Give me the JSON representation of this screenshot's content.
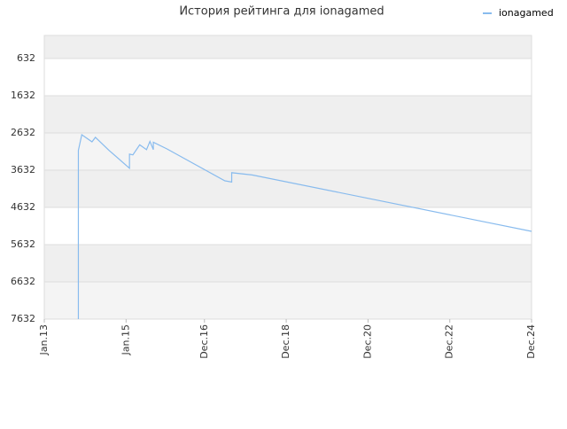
{
  "chart_data": {
    "type": "line",
    "title": "История рейтинга для ionagamed",
    "x": [
      "2013-11",
      "2013-11",
      "2013-12",
      "2014-03",
      "2014-04",
      "2014-08",
      "2015-02",
      "2015-02",
      "2015-03",
      "2015-05",
      "2015-07",
      "2015-08",
      "2015-09",
      "2015-09",
      "2016-01",
      "2017-06",
      "2017-08",
      "2017-08",
      "2018-02",
      "2024-12"
    ],
    "series": [
      {
        "name": "ionagamed",
        "color": "#88bbee",
        "values": [
          7632,
          3100,
          2680,
          2870,
          2750,
          3100,
          3580,
          3200,
          3220,
          2950,
          3080,
          2860,
          3080,
          2880,
          3060,
          3918,
          3950,
          3700,
          3760,
          5275
        ]
      }
    ],
    "xlim": [
      "2013-01",
      "2024-12"
    ],
    "xticks": [
      {
        "value": "2013-01",
        "label": "Jan.13"
      },
      {
        "value": "2015-01",
        "label": "Jan.15"
      },
      {
        "value": "2016-12",
        "label": "Dec.16"
      },
      {
        "value": "2018-12",
        "label": "Dec.18"
      },
      {
        "value": "2020-12",
        "label": "Dec.20"
      },
      {
        "value": "2022-12",
        "label": "Dec.22"
      },
      {
        "value": "2024-12",
        "label": "Dec.24"
      }
    ],
    "ylim": [
      7632,
      13
    ],
    "yticks": [
      632,
      1632,
      2632,
      3632,
      4632,
      5632,
      6632,
      7632
    ],
    "grid": true,
    "legend": "top-right"
  }
}
